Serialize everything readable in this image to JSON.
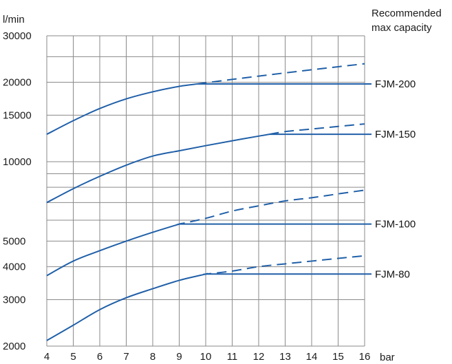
{
  "chart_data": {
    "type": "line",
    "title": "",
    "xlabel": "bar",
    "ylabel": "l/min",
    "annotation": [
      "Recommended",
      "max capacity"
    ],
    "grid": true,
    "x_scale": "linear",
    "y_scale": "log",
    "xlim": [
      4,
      16
    ],
    "ylim": [
      2000,
      30000
    ],
    "x_ticks": [
      4,
      5,
      6,
      7,
      8,
      9,
      10,
      11,
      12,
      13,
      14,
      15,
      16
    ],
    "y_tick_labels": [
      30000,
      20000,
      15000,
      10000,
      5000,
      4000,
      3000,
      2000
    ],
    "series": [
      {
        "name": "FJM-200",
        "x": [
          4,
          5,
          6,
          7,
          8,
          9,
          10,
          11,
          12,
          13,
          14,
          15,
          16
        ],
        "y": [
          12700,
          14300,
          15900,
          17300,
          18400,
          19300,
          19900,
          20500,
          21100,
          21700,
          22300,
          22900,
          23500
        ],
        "recommended_max": 19700
      },
      {
        "name": "FJM-150",
        "x": [
          4,
          5,
          6,
          7,
          8,
          9,
          10,
          11,
          12,
          13,
          14,
          15,
          16
        ],
        "y": [
          7000,
          7900,
          8800,
          9700,
          10500,
          11000,
          11500,
          12000,
          12500,
          13000,
          13300,
          13600,
          13900
        ],
        "recommended_max": 12700
      },
      {
        "name": "FJM-100",
        "x": [
          4,
          5,
          6,
          7,
          8,
          9,
          10,
          11,
          12,
          13,
          14,
          15,
          16
        ],
        "y": [
          3700,
          4200,
          4600,
          5000,
          5400,
          5800,
          6100,
          6500,
          6800,
          7100,
          7300,
          7550,
          7800
        ],
        "recommended_max": 5800
      },
      {
        "name": "FJM-80",
        "x": [
          4,
          5,
          6,
          7,
          8,
          9,
          10,
          11,
          12,
          13,
          14,
          15,
          16
        ],
        "y": [
          2100,
          2400,
          2750,
          3050,
          3300,
          3550,
          3750,
          3850,
          4000,
          4100,
          4200,
          4300,
          4400
        ],
        "recommended_max": 3750
      }
    ]
  }
}
